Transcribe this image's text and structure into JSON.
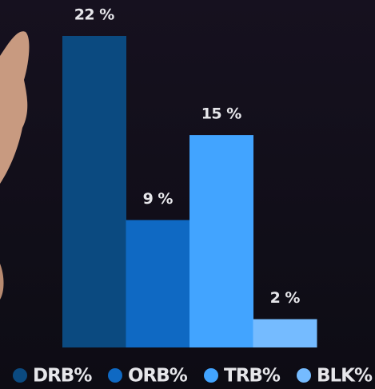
{
  "chart_data": {
    "type": "bar",
    "categories": [
      "DRB%",
      "ORB%",
      "TRB%",
      "BLK%"
    ],
    "values": [
      22,
      9,
      15,
      2
    ],
    "value_labels": [
      "22 %",
      "9 %",
      "15 %",
      "2 %"
    ],
    "colors": [
      "#0b4a80",
      "#0f69c3",
      "#42a4ff",
      "#75bbff"
    ]
  }
}
